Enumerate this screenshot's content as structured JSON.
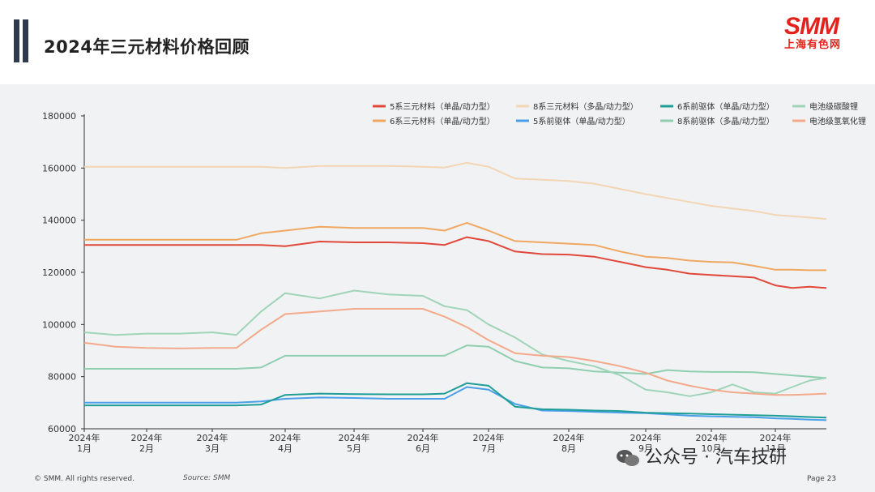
{
  "header": {
    "title": "2024年三元材料价格回顾",
    "logo_text": "SMM",
    "logo_sub": "上海有色网"
  },
  "footer": {
    "copyright": "© SMM. All rights reserved.",
    "source": "Source: SMM",
    "page": "Page 23"
  },
  "watermark": {
    "text": "公众号 · 汽车技研"
  },
  "chart_data": {
    "type": "line",
    "title": "",
    "xlabel": "",
    "ylabel": "",
    "ylim": [
      60000,
      180000
    ],
    "yticks": [
      "60000",
      "80000",
      "100000",
      "120000",
      "140000",
      "160000",
      "180000"
    ],
    "x_ticks": [
      {
        "year": "2024年",
        "month": "1月",
        "i": 0
      },
      {
        "year": "2024年",
        "month": "2月",
        "i": 1
      },
      {
        "year": "2024年",
        "month": "3月",
        "i": 2
      },
      {
        "year": "2024年",
        "month": "4月",
        "i": 3
      },
      {
        "year": "2024年",
        "month": "5月",
        "i": 4
      },
      {
        "year": "2024年",
        "month": "6月",
        "i": 5
      },
      {
        "year": "2024年",
        "month": "7月",
        "i": 6
      },
      {
        "year": "2024年",
        "month": "8月",
        "i": 7
      },
      {
        "year": "2024年",
        "month": "9月",
        "i": 8
      },
      {
        "year": "2024年",
        "month": "10月",
        "i": 9
      },
      {
        "year": "2024年",
        "month": "11月",
        "i": 10
      }
    ],
    "x_points": [
      "1月上",
      "1月下",
      "2月上",
      "2月下",
      "3月上",
      "3月中",
      "3月下",
      "4月上",
      "4月下",
      "5月上",
      "5月下",
      "6月上",
      "6月中",
      "6月下",
      "7月上",
      "7月中",
      "7月下",
      "8月上",
      "8月中",
      "8月下",
      "9月上",
      "9月中",
      "9月下",
      "10月上",
      "10月中",
      "10月下",
      "11月上",
      "11月中",
      "11月下",
      "12月上"
    ],
    "grid": false,
    "legend_position": "top-right",
    "series": [
      {
        "name": "5系三元材料（单晶/动力型）",
        "color": "#e0483a",
        "values": [
          130500,
          130500,
          130500,
          130500,
          130500,
          130500,
          130500,
          130000,
          131800,
          131500,
          131500,
          131200,
          130500,
          133500,
          132000,
          128000,
          127000,
          126800,
          126000,
          124000,
          122000,
          121000,
          119500,
          119000,
          118500,
          118000,
          115000,
          114000,
          114500,
          114000
        ]
      },
      {
        "name": "6系三元材料（单晶/动力型）",
        "color": "#f0a860",
        "values": [
          132500,
          132500,
          132500,
          132500,
          132500,
          132500,
          135000,
          136000,
          137500,
          137000,
          137000,
          137000,
          136000,
          139000,
          136000,
          132000,
          131500,
          131000,
          130500,
          128000,
          126000,
          125500,
          124500,
          124000,
          123800,
          122500,
          121000,
          121000,
          120800,
          120800
        ]
      },
      {
        "name": "8系三元材料（多晶/动力型）",
        "color": "#f3d6b4",
        "values": [
          160500,
          160500,
          160500,
          160500,
          160500,
          160500,
          160500,
          160000,
          160800,
          160800,
          160800,
          160500,
          160200,
          162000,
          160500,
          156000,
          155500,
          155000,
          154000,
          152000,
          150000,
          148500,
          147000,
          145500,
          144500,
          143500,
          142000,
          141500,
          141000,
          140500
        ]
      },
      {
        "name": "5系前驱体（单晶/动力型）",
        "color": "#4a9fe8",
        "values": [
          70000,
          70000,
          70000,
          70000,
          70000,
          70000,
          70500,
          71500,
          72000,
          71800,
          71500,
          71500,
          71500,
          76000,
          75000,
          69500,
          67000,
          66800,
          66500,
          66200,
          66000,
          65500,
          65000,
          64800,
          64600,
          64400,
          64000,
          63800,
          63500,
          63300
        ]
      },
      {
        "name": "6系前驱体（单晶/动力型）",
        "color": "#1f9e98",
        "values": [
          69000,
          69000,
          69000,
          69000,
          69000,
          69000,
          69300,
          73000,
          73500,
          73300,
          73200,
          73200,
          73500,
          77500,
          76500,
          68500,
          67500,
          67300,
          67000,
          66800,
          66200,
          66000,
          65800,
          65600,
          65400,
          65200,
          65000,
          64800,
          64500,
          64300
        ]
      },
      {
        "name": "8系前驱体（多晶/动力型）",
        "color": "#8fcfb0",
        "values": [
          83000,
          83000,
          83000,
          83000,
          83000,
          83000,
          83500,
          88000,
          88000,
          88000,
          88000,
          88000,
          88000,
          92000,
          91500,
          86000,
          83500,
          83200,
          82000,
          81500,
          81000,
          82500,
          82000,
          81800,
          81800,
          81700,
          81000,
          80500,
          80000,
          79500
        ]
      },
      {
        "name": "电池级碳酸锂",
        "color": "#9fd4b8",
        "values": [
          97000,
          96000,
          96500,
          96500,
          97000,
          96000,
          105000,
          112000,
          110000,
          113000,
          111500,
          111000,
          107000,
          105500,
          100000,
          95000,
          88500,
          86000,
          84000,
          80500,
          75000,
          74000,
          72500,
          74000,
          77000,
          74000,
          73500,
          76000,
          78500,
          79500
        ]
      },
      {
        "name": "电池级氢氧化锂",
        "color": "#f3a98a",
        "values": [
          93000,
          91500,
          91000,
          90800,
          91000,
          91000,
          98000,
          104000,
          105000,
          106000,
          106000,
          106000,
          103000,
          99000,
          94000,
          89000,
          88000,
          87500,
          86000,
          84000,
          81500,
          78500,
          76500,
          75000,
          74000,
          73500,
          73000,
          73000,
          73200,
          73500
        ]
      }
    ]
  }
}
